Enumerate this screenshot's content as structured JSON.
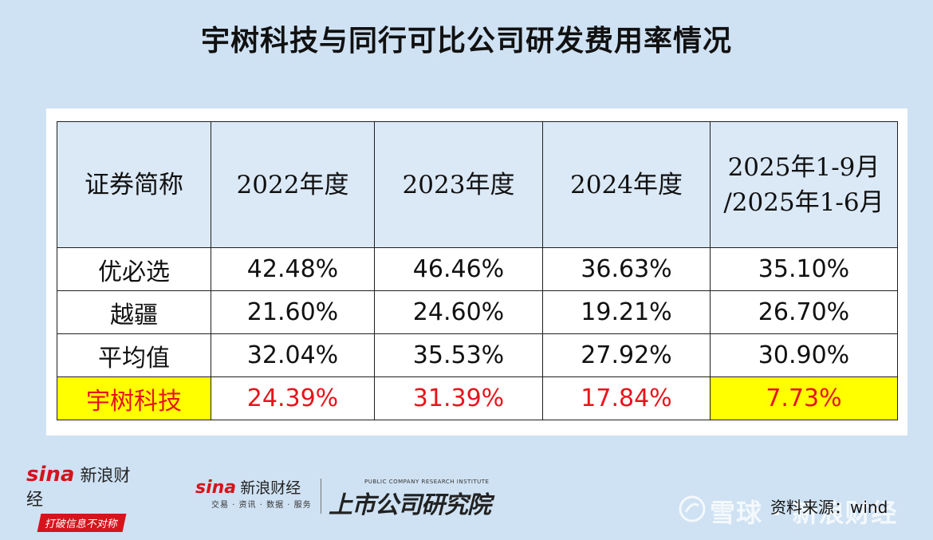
{
  "title": "宇树科技与同行可比公司研发费用率情况",
  "table": {
    "headers": [
      "证券简称",
      "2022年度",
      "2023年度",
      "2024年度",
      "2025年1-9月\n/2025年1-6月"
    ],
    "rows": [
      [
        "优必选",
        "42.48%",
        "46.46%",
        "36.63%",
        "35.10%"
      ],
      [
        "越疆",
        "21.60%",
        "24.60%",
        "19.21%",
        "26.70%"
      ],
      [
        "平均值",
        "32.04%",
        "35.53%",
        "27.92%",
        "30.90%"
      ],
      [
        "宇树科技",
        "24.39%",
        "31.39%",
        "17.84%",
        "7.73%"
      ]
    ]
  },
  "footer": {
    "logo1_brand": "sina",
    "logo1_name": "新浪财经",
    "logo1_slogan": "打破信息不对称",
    "logo2_brand": "sina",
    "logo2_name": "新浪财经",
    "logo2_sub": "交易 · 资讯 · 数据 · 服务",
    "logo3_en": "PUBLIC COMPANY RESEARCH INSTITUTE",
    "logo3_cn": "上市公司研究院",
    "source": "资料来源：wind",
    "watermark": "雪球 · 新浪财经"
  },
  "colors": {
    "background": "#cfe2f3",
    "header_fill": "#dbe8f5",
    "highlight_text": "#e8141b",
    "highlight_fill": "#ffff00",
    "brand_red": "#d6141b"
  }
}
